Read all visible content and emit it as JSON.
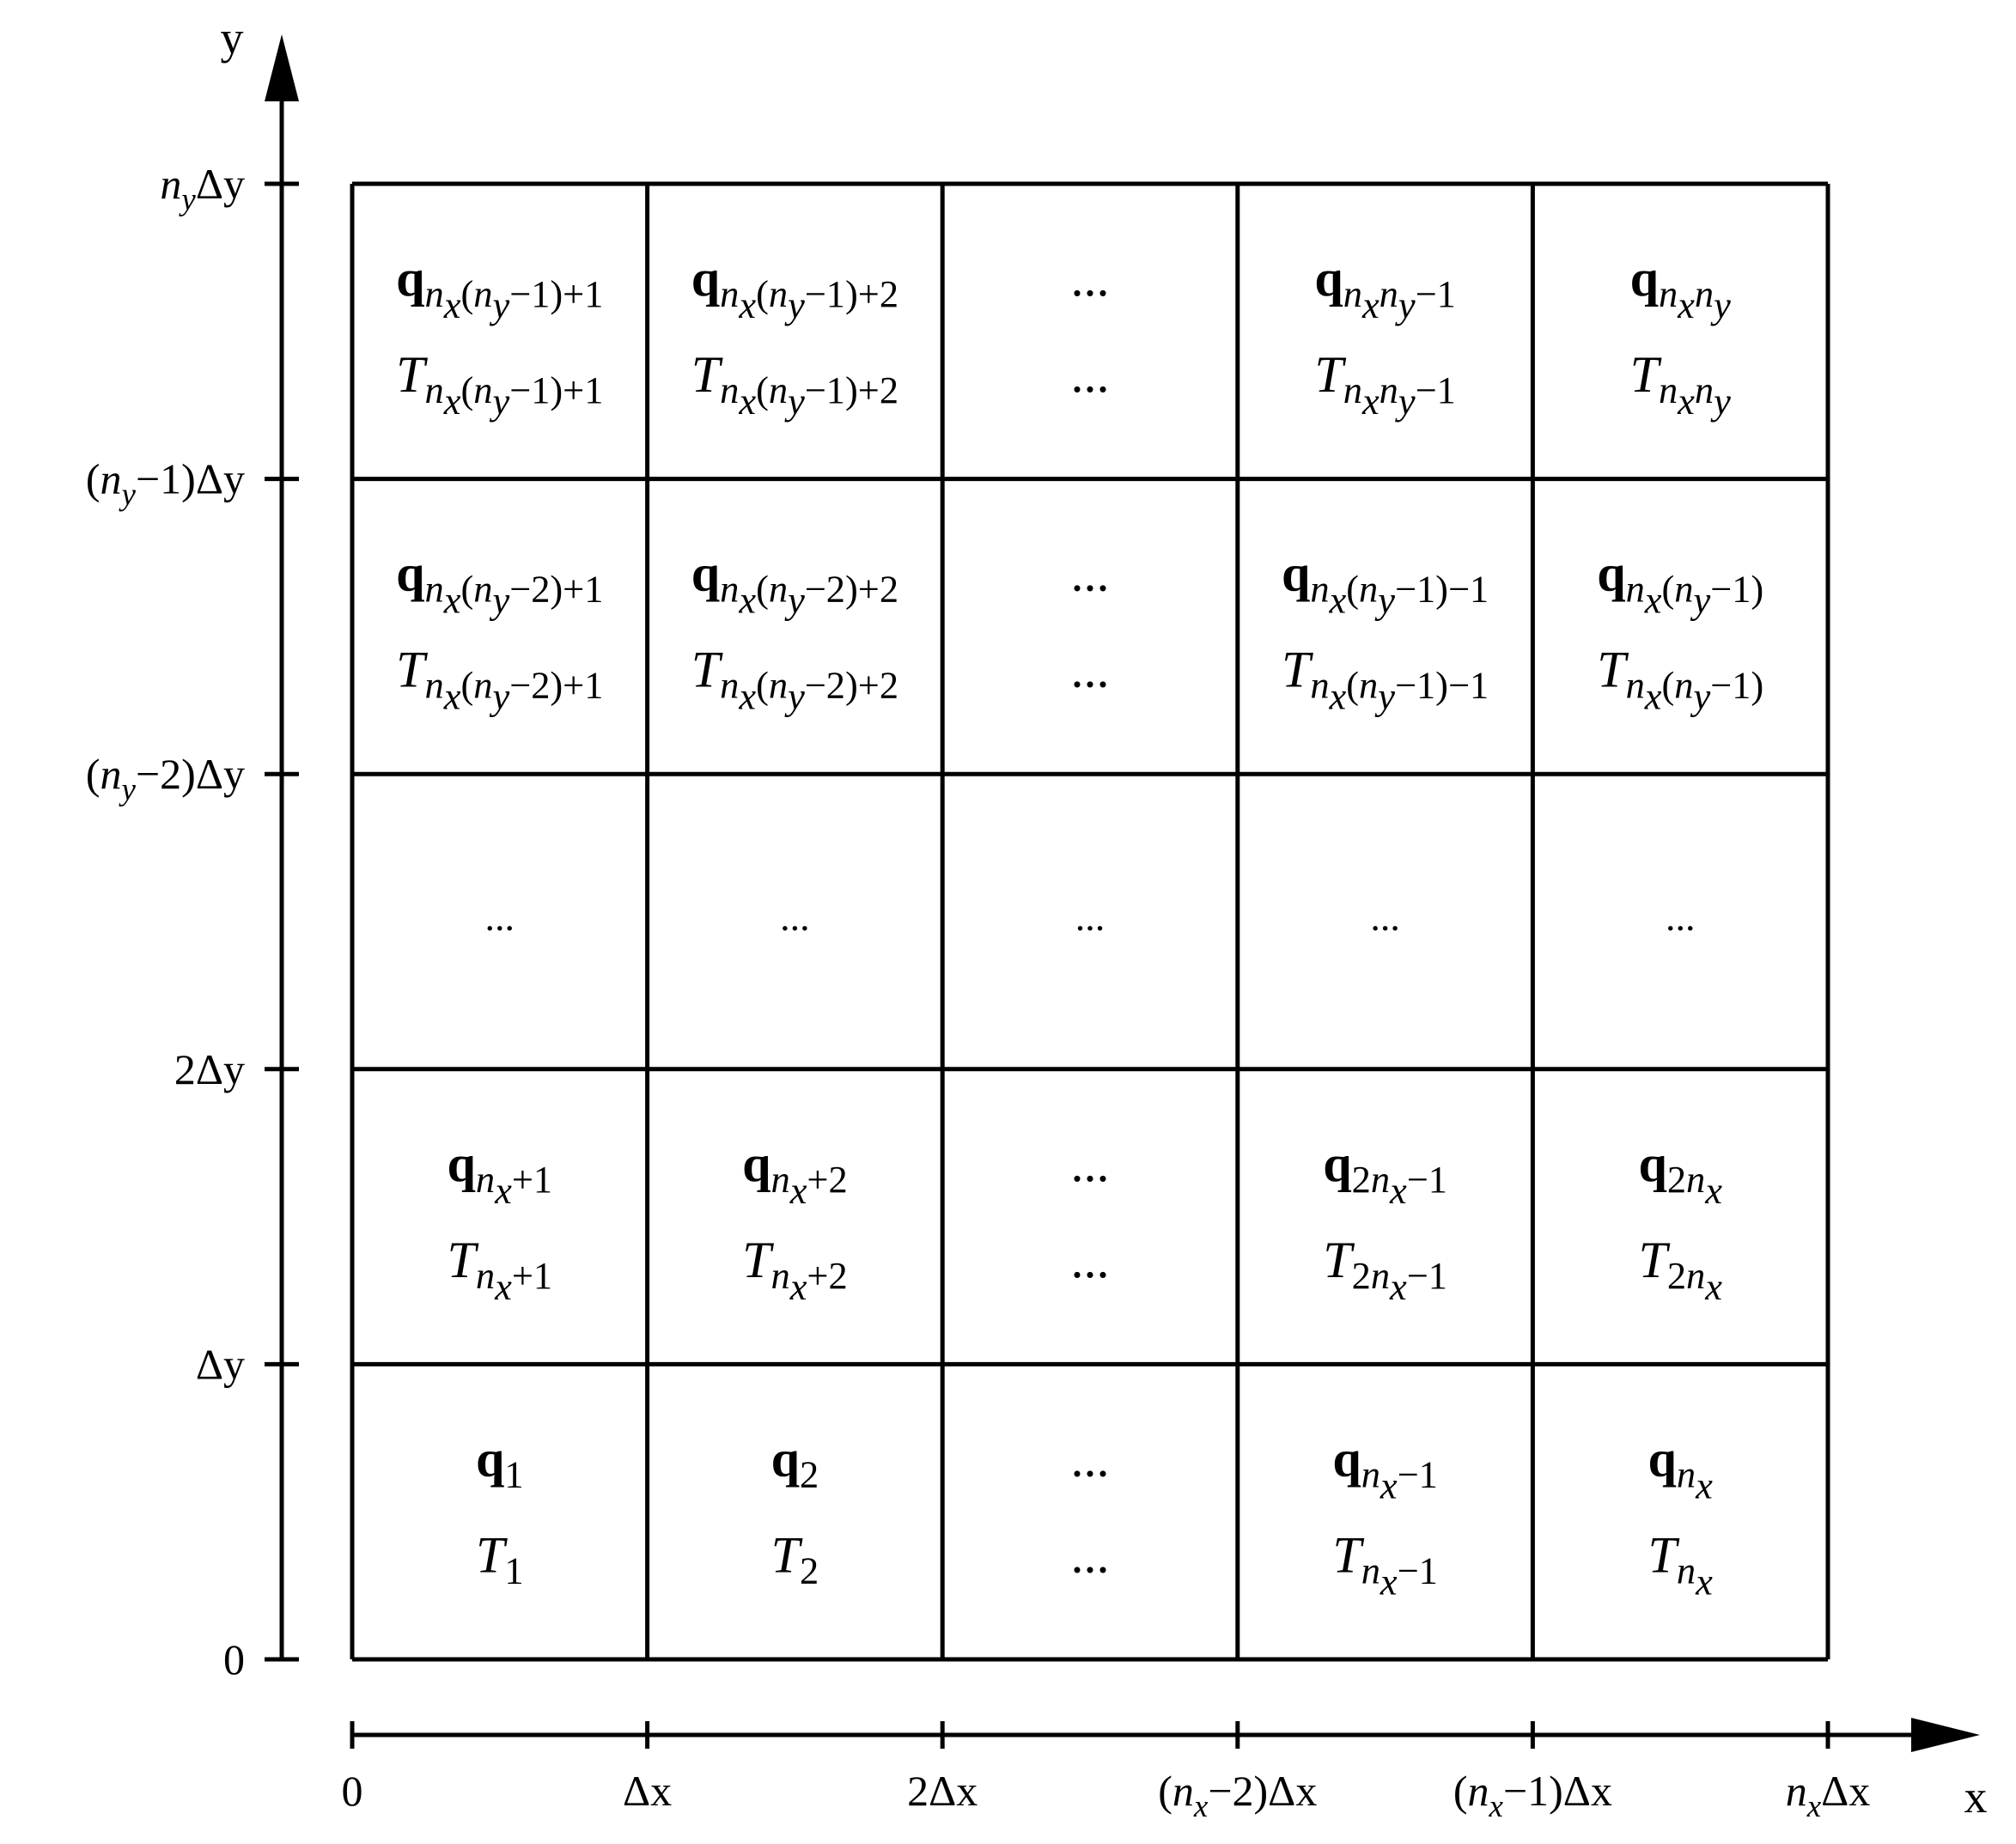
{
  "axes": {
    "x_label": "x",
    "y_label": "y",
    "x_ticks": [
      [
        {
          "t": "0"
        }
      ],
      [
        {
          "t": "Δx"
        }
      ],
      [
        {
          "t": "2Δx"
        }
      ],
      [
        {
          "t": "("
        },
        {
          "t": "n",
          "i": 1
        },
        {
          "t": "x",
          "i": 1,
          "s": "sub"
        },
        {
          "t": "−2)Δx"
        }
      ],
      [
        {
          "t": "("
        },
        {
          "t": "n",
          "i": 1
        },
        {
          "t": "x",
          "i": 1,
          "s": "sub"
        },
        {
          "t": "−1)Δx"
        }
      ],
      [
        {
          "t": "n",
          "i": 1
        },
        {
          "t": "x",
          "i": 1,
          "s": "sub"
        },
        {
          "t": "Δx"
        }
      ]
    ],
    "y_ticks": [
      [
        {
          "t": "0"
        }
      ],
      [
        {
          "t": "Δy"
        }
      ],
      [
        {
          "t": "2Δy"
        }
      ],
      [
        {
          "t": "("
        },
        {
          "t": "n",
          "i": 1
        },
        {
          "t": "y",
          "i": 1,
          "s": "sub"
        },
        {
          "t": "−2)Δy"
        }
      ],
      [
        {
          "t": "("
        },
        {
          "t": "n",
          "i": 1
        },
        {
          "t": "y",
          "i": 1,
          "s": "sub"
        },
        {
          "t": "−1)Δy"
        }
      ],
      [
        {
          "t": "n",
          "i": 1
        },
        {
          "t": "y",
          "i": 1,
          "s": "sub"
        },
        {
          "t": "Δy"
        }
      ]
    ]
  },
  "grid": {
    "rows": [
      [
        {
          "q": [
            {
              "t": "q",
              "b": 1
            },
            {
              "t": "1",
              "s": "sub"
            }
          ],
          "T": [
            {
              "t": "T",
              "i": 1
            },
            {
              "t": "1",
              "s": "sub"
            }
          ]
        },
        {
          "q": [
            {
              "t": "q",
              "b": 1
            },
            {
              "t": "2",
              "s": "sub"
            }
          ],
          "T": [
            {
              "t": "T",
              "i": 1
            },
            {
              "t": "2",
              "s": "sub"
            }
          ]
        },
        {
          "q": [
            {
              "t": "..."
            }
          ],
          "T": [
            {
              "t": "..."
            }
          ]
        },
        {
          "q": [
            {
              "t": "q",
              "b": 1
            },
            {
              "t": "n",
              "i": 1,
              "s": "sub"
            },
            {
              "t": "x",
              "i": 1,
              "s": "sub2"
            },
            {
              "t": "−1",
              "s": "sub"
            }
          ],
          "T": [
            {
              "t": "T",
              "i": 1
            },
            {
              "t": "n",
              "i": 1,
              "s": "sub"
            },
            {
              "t": "x",
              "i": 1,
              "s": "sub2"
            },
            {
              "t": "−1",
              "s": "sub"
            }
          ]
        },
        {
          "q": [
            {
              "t": "q",
              "b": 1
            },
            {
              "t": "n",
              "i": 1,
              "s": "sub"
            },
            {
              "t": "x",
              "i": 1,
              "s": "sub2"
            }
          ],
          "T": [
            {
              "t": "T",
              "i": 1
            },
            {
              "t": "n",
              "i": 1,
              "s": "sub"
            },
            {
              "t": "x",
              "i": 1,
              "s": "sub2"
            }
          ]
        }
      ],
      [
        {
          "q": [
            {
              "t": "q",
              "b": 1
            },
            {
              "t": "n",
              "i": 1,
              "s": "sub"
            },
            {
              "t": "x",
              "i": 1,
              "s": "sub2"
            },
            {
              "t": "+1",
              "s": "sub"
            }
          ],
          "T": [
            {
              "t": "T",
              "i": 1
            },
            {
              "t": "n",
              "i": 1,
              "s": "sub"
            },
            {
              "t": "x",
              "i": 1,
              "s": "sub2"
            },
            {
              "t": "+1",
              "s": "sub"
            }
          ]
        },
        {
          "q": [
            {
              "t": "q",
              "b": 1
            },
            {
              "t": "n",
              "i": 1,
              "s": "sub"
            },
            {
              "t": "x",
              "i": 1,
              "s": "sub2"
            },
            {
              "t": "+2",
              "s": "sub"
            }
          ],
          "T": [
            {
              "t": "T",
              "i": 1
            },
            {
              "t": "n",
              "i": 1,
              "s": "sub"
            },
            {
              "t": "x",
              "i": 1,
              "s": "sub2"
            },
            {
              "t": "+2",
              "s": "sub"
            }
          ]
        },
        {
          "q": [
            {
              "t": "..."
            }
          ],
          "T": [
            {
              "t": "..."
            }
          ]
        },
        {
          "q": [
            {
              "t": "q",
              "b": 1
            },
            {
              "t": "2",
              "s": "sub"
            },
            {
              "t": "n",
              "i": 1,
              "s": "sub"
            },
            {
              "t": "x",
              "i": 1,
              "s": "sub2"
            },
            {
              "t": "−1",
              "s": "sub"
            }
          ],
          "T": [
            {
              "t": "T",
              "i": 1
            },
            {
              "t": "2",
              "s": "sub"
            },
            {
              "t": "n",
              "i": 1,
              "s": "sub"
            },
            {
              "t": "x",
              "i": 1,
              "s": "sub2"
            },
            {
              "t": "−1",
              "s": "sub"
            }
          ]
        },
        {
          "q": [
            {
              "t": "q",
              "b": 1
            },
            {
              "t": "2",
              "s": "sub"
            },
            {
              "t": "n",
              "i": 1,
              "s": "sub"
            },
            {
              "t": "x",
              "i": 1,
              "s": "sub2"
            }
          ],
          "T": [
            {
              "t": "T",
              "i": 1
            },
            {
              "t": "2",
              "s": "sub"
            },
            {
              "t": "n",
              "i": 1,
              "s": "sub"
            },
            {
              "t": "x",
              "i": 1,
              "s": "sub2"
            }
          ]
        }
      ],
      [
        {
          "dots": "..."
        },
        {
          "dots": "..."
        },
        {
          "dots": "..."
        },
        {
          "dots": "..."
        },
        {
          "dots": "..."
        }
      ],
      [
        {
          "q": [
            {
              "t": "q",
              "b": 1
            },
            {
              "t": "n",
              "i": 1,
              "s": "sub"
            },
            {
              "t": "x",
              "i": 1,
              "s": "sub2"
            },
            {
              "t": "(",
              "s": "sub"
            },
            {
              "t": "n",
              "i": 1,
              "s": "sub"
            },
            {
              "t": "y",
              "i": 1,
              "s": "sub2"
            },
            {
              "t": "−2)+1",
              "s": "sub"
            }
          ],
          "T": [
            {
              "t": "T",
              "i": 1
            },
            {
              "t": "n",
              "i": 1,
              "s": "sub"
            },
            {
              "t": "x",
              "i": 1,
              "s": "sub2"
            },
            {
              "t": "(",
              "s": "sub"
            },
            {
              "t": "n",
              "i": 1,
              "s": "sub"
            },
            {
              "t": "y",
              "i": 1,
              "s": "sub2"
            },
            {
              "t": "−2)+1",
              "s": "sub"
            }
          ]
        },
        {
          "q": [
            {
              "t": "q",
              "b": 1
            },
            {
              "t": "n",
              "i": 1,
              "s": "sub"
            },
            {
              "t": "x",
              "i": 1,
              "s": "sub2"
            },
            {
              "t": "(",
              "s": "sub"
            },
            {
              "t": "n",
              "i": 1,
              "s": "sub"
            },
            {
              "t": "y",
              "i": 1,
              "s": "sub2"
            },
            {
              "t": "−2)+2",
              "s": "sub"
            }
          ],
          "T": [
            {
              "t": "T",
              "i": 1
            },
            {
              "t": "n",
              "i": 1,
              "s": "sub"
            },
            {
              "t": "x",
              "i": 1,
              "s": "sub2"
            },
            {
              "t": "(",
              "s": "sub"
            },
            {
              "t": "n",
              "i": 1,
              "s": "sub"
            },
            {
              "t": "y",
              "i": 1,
              "s": "sub2"
            },
            {
              "t": "−2)+2",
              "s": "sub"
            }
          ]
        },
        {
          "q": [
            {
              "t": "..."
            }
          ],
          "T": [
            {
              "t": "..."
            }
          ]
        },
        {
          "q": [
            {
              "t": "q",
              "b": 1
            },
            {
              "t": "n",
              "i": 1,
              "s": "sub"
            },
            {
              "t": "x",
              "i": 1,
              "s": "sub2"
            },
            {
              "t": "(",
              "s": "sub"
            },
            {
              "t": "n",
              "i": 1,
              "s": "sub"
            },
            {
              "t": "y",
              "i": 1,
              "s": "sub2"
            },
            {
              "t": "−1)−1",
              "s": "sub"
            }
          ],
          "T": [
            {
              "t": "T",
              "i": 1
            },
            {
              "t": "n",
              "i": 1,
              "s": "sub"
            },
            {
              "t": "x",
              "i": 1,
              "s": "sub2"
            },
            {
              "t": "(",
              "s": "sub"
            },
            {
              "t": "n",
              "i": 1,
              "s": "sub"
            },
            {
              "t": "y",
              "i": 1,
              "s": "sub2"
            },
            {
              "t": "−1)−1",
              "s": "sub"
            }
          ]
        },
        {
          "q": [
            {
              "t": "q",
              "b": 1
            },
            {
              "t": "n",
              "i": 1,
              "s": "sub"
            },
            {
              "t": "x",
              "i": 1,
              "s": "sub2"
            },
            {
              "t": "(",
              "s": "sub"
            },
            {
              "t": "n",
              "i": 1,
              "s": "sub"
            },
            {
              "t": "y",
              "i": 1,
              "s": "sub2"
            },
            {
              "t": "−1)",
              "s": "sub"
            }
          ],
          "T": [
            {
              "t": "T",
              "i": 1
            },
            {
              "t": "n",
              "i": 1,
              "s": "sub"
            },
            {
              "t": "x",
              "i": 1,
              "s": "sub2"
            },
            {
              "t": "(",
              "s": "sub"
            },
            {
              "t": "n",
              "i": 1,
              "s": "sub"
            },
            {
              "t": "y",
              "i": 1,
              "s": "sub2"
            },
            {
              "t": "−1)",
              "s": "sub"
            }
          ]
        }
      ],
      [
        {
          "q": [
            {
              "t": "q",
              "b": 1
            },
            {
              "t": "n",
              "i": 1,
              "s": "sub"
            },
            {
              "t": "x",
              "i": 1,
              "s": "sub2"
            },
            {
              "t": "(",
              "s": "sub"
            },
            {
              "t": "n",
              "i": 1,
              "s": "sub"
            },
            {
              "t": "y",
              "i": 1,
              "s": "sub2"
            },
            {
              "t": "−1)+1",
              "s": "sub"
            }
          ],
          "T": [
            {
              "t": "T",
              "i": 1
            },
            {
              "t": "n",
              "i": 1,
              "s": "sub"
            },
            {
              "t": "x",
              "i": 1,
              "s": "sub2"
            },
            {
              "t": "(",
              "s": "sub"
            },
            {
              "t": "n",
              "i": 1,
              "s": "sub"
            },
            {
              "t": "y",
              "i": 1,
              "s": "sub2"
            },
            {
              "t": "−1)+1",
              "s": "sub"
            }
          ]
        },
        {
          "q": [
            {
              "t": "q",
              "b": 1
            },
            {
              "t": "n",
              "i": 1,
              "s": "sub"
            },
            {
              "t": "x",
              "i": 1,
              "s": "sub2"
            },
            {
              "t": "(",
              "s": "sub"
            },
            {
              "t": "n",
              "i": 1,
              "s": "sub"
            },
            {
              "t": "y",
              "i": 1,
              "s": "sub2"
            },
            {
              "t": "−1)+2",
              "s": "sub"
            }
          ],
          "T": [
            {
              "t": "T",
              "i": 1
            },
            {
              "t": "n",
              "i": 1,
              "s": "sub"
            },
            {
              "t": "x",
              "i": 1,
              "s": "sub2"
            },
            {
              "t": "(",
              "s": "sub"
            },
            {
              "t": "n",
              "i": 1,
              "s": "sub"
            },
            {
              "t": "y",
              "i": 1,
              "s": "sub2"
            },
            {
              "t": "−1)+2",
              "s": "sub"
            }
          ]
        },
        {
          "q": [
            {
              "t": "..."
            }
          ],
          "T": [
            {
              "t": "..."
            }
          ]
        },
        {
          "q": [
            {
              "t": "q",
              "b": 1
            },
            {
              "t": "n",
              "i": 1,
              "s": "sub"
            },
            {
              "t": "x",
              "i": 1,
              "s": "sub2"
            },
            {
              "t": "n",
              "i": 1,
              "s": "sub"
            },
            {
              "t": "y",
              "i": 1,
              "s": "sub2"
            },
            {
              "t": "−1",
              "s": "sub"
            }
          ],
          "T": [
            {
              "t": "T",
              "i": 1
            },
            {
              "t": "n",
              "i": 1,
              "s": "sub"
            },
            {
              "t": "x",
              "i": 1,
              "s": "sub2"
            },
            {
              "t": "n",
              "i": 1,
              "s": "sub"
            },
            {
              "t": "y",
              "i": 1,
              "s": "sub2"
            },
            {
              "t": "−1",
              "s": "sub"
            }
          ]
        },
        {
          "q": [
            {
              "t": "q",
              "b": 1
            },
            {
              "t": "n",
              "i": 1,
              "s": "sub"
            },
            {
              "t": "x",
              "i": 1,
              "s": "sub2"
            },
            {
              "t": "n",
              "i": 1,
              "s": "sub"
            },
            {
              "t": "y",
              "i": 1,
              "s": "sub2"
            }
          ],
          "T": [
            {
              "t": "T",
              "i": 1
            },
            {
              "t": "n",
              "i": 1,
              "s": "sub"
            },
            {
              "t": "x",
              "i": 1,
              "s": "sub2"
            },
            {
              "t": "n",
              "i": 1,
              "s": "sub"
            },
            {
              "t": "y",
              "i": 1,
              "s": "sub2"
            }
          ]
        }
      ]
    ]
  }
}
